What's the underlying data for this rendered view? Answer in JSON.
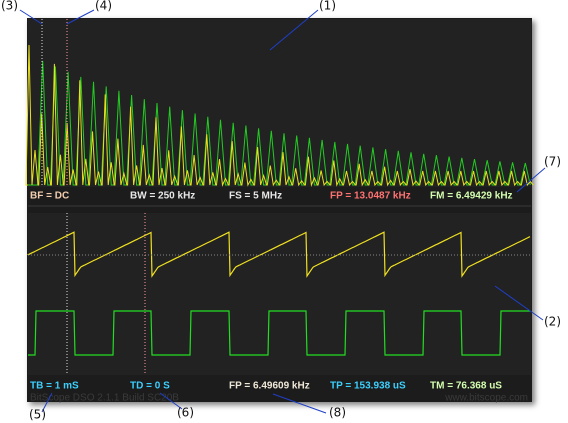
{
  "callouts": {
    "c1": "(1)",
    "c2": "(2)",
    "c3": "(3)",
    "c4": "(4)",
    "c5": "(5)",
    "c6": "(6)",
    "c7": "(7)",
    "c8": "(8)"
  },
  "spectrum_labels": {
    "bf": "BF = DC",
    "bw": "BW = 250 kHz",
    "fs": "FS = 5 MHz",
    "fp": "FP = 13.0487 kHz",
    "fm": "FM = 6.49429 kHz"
  },
  "scope_labels": {
    "tb": "TB = 1 mS",
    "td": "TD = 0 S",
    "fp": "FP = 6.49609 kHz",
    "tp": "TP = 153.938 uS",
    "tm": "TM = 76.368 uS"
  },
  "footer": {
    "build": "BitScope DSO 2.1.1 Build SC20B",
    "website": "www.bitscope.com"
  }
}
